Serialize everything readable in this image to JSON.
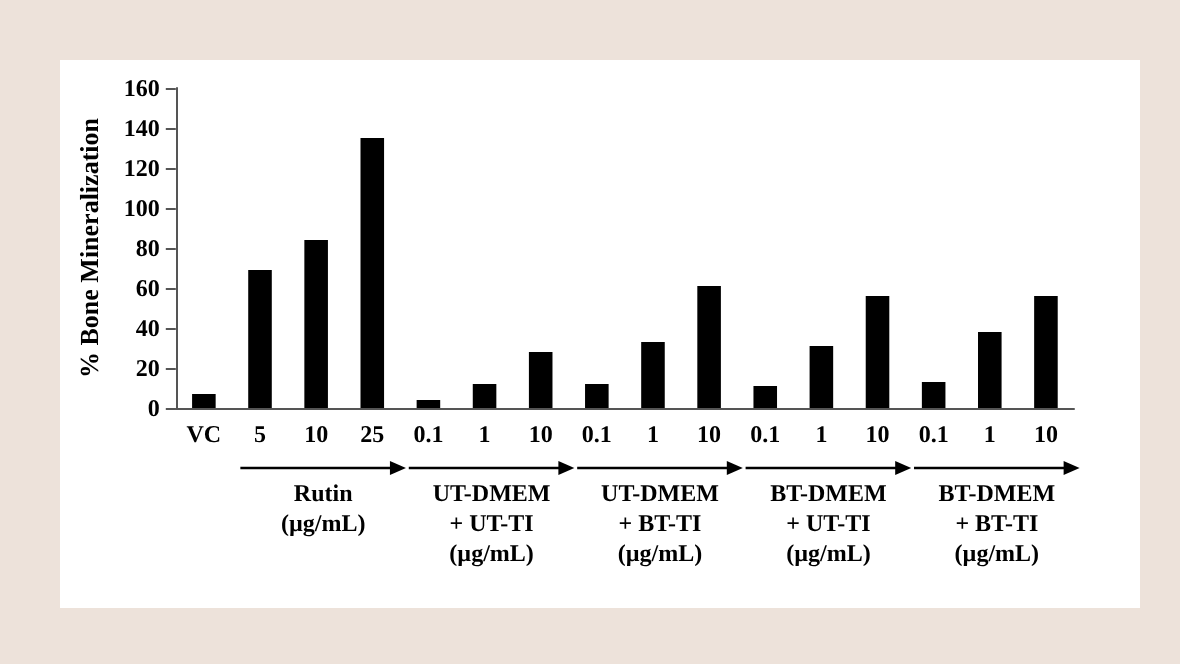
{
  "chart_data": {
    "type": "bar",
    "ylabel": "% Bone Mineralization",
    "categories": [
      "VC",
      "5",
      "10",
      "25",
      "0.1",
      "1",
      "10",
      "0.1",
      "1",
      "10",
      "0.1",
      "1",
      "10",
      "0.1",
      "1",
      "10"
    ],
    "values": [
      7,
      69,
      84,
      135,
      4,
      12,
      28,
      12,
      33,
      61,
      11,
      31,
      56,
      13,
      38,
      56
    ],
    "color": "#000000",
    "ylim": [
      0,
      160
    ],
    "yticks": [
      0,
      20,
      40,
      60,
      80,
      100,
      120,
      140,
      160
    ],
    "grid": false,
    "annotations": [
      "Rutin\n(µg/mL)",
      "UT-DMEM\n+ UT-TI\n(µg/mL)",
      "UT-DMEM\n+ BT-TI\n(µg/mL)",
      "BT-DMEM\n+ UT-TI\n(µg/mL)",
      "BT-DMEM\n+ BT-TI\n(µg/mL)"
    ]
  }
}
